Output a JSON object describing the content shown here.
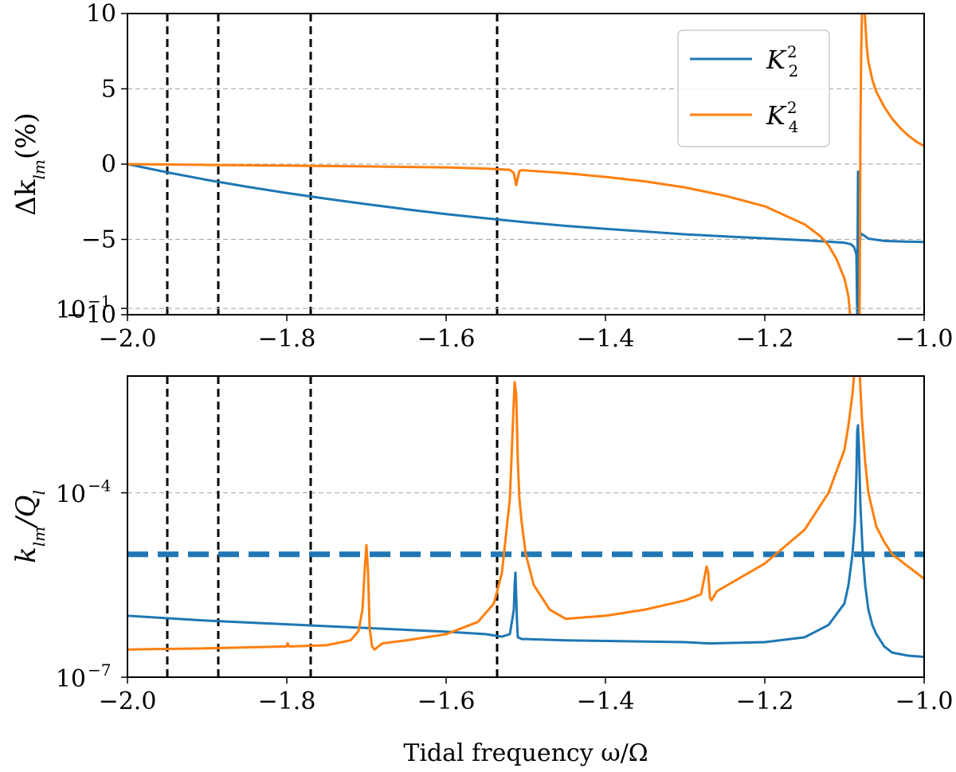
{
  "colors": {
    "series1": "#1f77b4",
    "series2": "#ff7f0e",
    "grid": "#b0b0b0",
    "vline": "#000000"
  },
  "chart_data": [
    {
      "type": "line",
      "panel": "top",
      "ylabel_main": "Δk",
      "ylabel_sub": "lm",
      "ylabel_unit": "(%)",
      "xlim": [
        -2.0,
        -1.0
      ],
      "ylim": [
        -10,
        10
      ],
      "xticks": [
        -2.0,
        -1.8,
        -1.6,
        -1.4,
        -1.2,
        -1.0
      ],
      "xtick_labels": [
        "−2.0",
        "−1.8",
        "−1.6",
        "−1.4",
        "−1.2",
        "−1.0"
      ],
      "yticks": [
        -10,
        -5,
        0,
        5,
        10
      ],
      "ytick_labels": [
        "−10",
        "−5",
        "0",
        "5",
        "10"
      ],
      "grid_y": [
        -5,
        0,
        5
      ],
      "vlines": [
        -1.95,
        -1.886,
        -1.77,
        -1.536
      ],
      "legend": {
        "position": "top-right",
        "entries": [
          {
            "base": "K",
            "sub": "2",
            "sup": "2",
            "series": "K22"
          },
          {
            "base": "K",
            "sub": "4",
            "sup": "2",
            "series": "K42"
          }
        ]
      },
      "series": [
        {
          "name": "K22",
          "x": [
            -2.0,
            -1.95,
            -1.9,
            -1.85,
            -1.8,
            -1.75,
            -1.7,
            -1.65,
            -1.6,
            -1.55,
            -1.5,
            -1.45,
            -1.4,
            -1.35,
            -1.3,
            -1.25,
            -1.2,
            -1.15,
            -1.12,
            -1.1,
            -1.092,
            -1.088,
            -1.085,
            -1.084,
            -1.083,
            -1.082,
            -1.081,
            -1.08,
            -1.075,
            -1.07,
            -1.05,
            -1.02,
            -1.0
          ],
          "y": [
            0.0,
            -0.55,
            -1.05,
            -1.5,
            -1.92,
            -2.3,
            -2.66,
            -3.0,
            -3.32,
            -3.6,
            -3.86,
            -4.1,
            -4.3,
            -4.48,
            -4.66,
            -4.8,
            -4.93,
            -5.06,
            -5.15,
            -5.22,
            -5.32,
            -5.5,
            -6.0,
            -10.0,
            -0.5,
            -10.0,
            -5.6,
            -4.6,
            -4.75,
            -4.95,
            -5.1,
            -5.15,
            -5.17
          ]
        },
        {
          "name": "K42",
          "x": [
            -2.0,
            -1.9,
            -1.8,
            -1.7,
            -1.6,
            -1.55,
            -1.52,
            -1.515,
            -1.512,
            -1.51,
            -1.508,
            -1.505,
            -1.5,
            -1.45,
            -1.4,
            -1.35,
            -1.3,
            -1.25,
            -1.2,
            -1.15,
            -1.13,
            -1.12,
            -1.11,
            -1.1,
            -1.095,
            -1.093
          ],
          "y": [
            0.0,
            -0.05,
            -0.1,
            -0.15,
            -0.22,
            -0.3,
            -0.38,
            -0.6,
            -1.4,
            -0.9,
            -0.45,
            -0.4,
            -0.42,
            -0.6,
            -0.85,
            -1.15,
            -1.55,
            -2.1,
            -2.8,
            -4.0,
            -4.8,
            -5.4,
            -6.3,
            -7.6,
            -8.8,
            -10.0
          ]
        },
        {
          "name": "K42-after-resonance",
          "x": [
            -1.081,
            -1.08,
            -1.079,
            -1.078,
            -1.077,
            -1.075,
            -1.074,
            -1.072,
            -1.07,
            -1.065,
            -1.06,
            -1.05,
            -1.04,
            -1.03,
            -1.02,
            -1.01,
            -1.0
          ],
          "y": [
            -10.0,
            2.0,
            7.5,
            10.0,
            11.0,
            11.0,
            9.5,
            7.8,
            6.8,
            5.6,
            4.8,
            3.8,
            3.0,
            2.4,
            1.9,
            1.5,
            1.2
          ]
        }
      ]
    },
    {
      "type": "line",
      "panel": "bottom",
      "yscale": "log",
      "ylabel_main": "k",
      "ylabel_sub": "lm",
      "ylabel_rest": "/Q",
      "ylabel_sub2": "l",
      "xlabel": "Tidal frequency ω/Ω",
      "xlim": [
        -2.0,
        -1.0
      ],
      "ylim_log10": [
        -7,
        -2.1
      ],
      "xticks": [
        -2.0,
        -1.8,
        -1.6,
        -1.4,
        -1.2,
        -1.0
      ],
      "xtick_labels": [
        "−2.0",
        "−1.8",
        "−1.6",
        "−1.4",
        "−1.2",
        "−1.0"
      ],
      "yticks_log10": [
        -7,
        -4,
        -1
      ],
      "ytick_base": "10",
      "ytick_exps": [
        "−7",
        "−4",
        "−1"
      ],
      "grid_y_log10": [
        -4,
        -1
      ],
      "vlines": [
        -1.95,
        -1.886,
        -1.77,
        -1.536
      ],
      "hline_log10": -5.0,
      "series": [
        {
          "name": "K22",
          "x": [
            -2.0,
            -1.9,
            -1.8,
            -1.7,
            -1.6,
            -1.55,
            -1.53,
            -1.52,
            -1.515,
            -1.514,
            -1.513,
            -1.512,
            -1.511,
            -1.51,
            -1.505,
            -1.5,
            -1.45,
            -1.4,
            -1.35,
            -1.3,
            -1.27,
            -1.2,
            -1.15,
            -1.12,
            -1.1,
            -1.095,
            -1.09,
            -1.087,
            -1.085,
            -1.084,
            -1.083,
            -1.082,
            -1.08,
            -1.077,
            -1.074,
            -1.07,
            -1.065,
            -1.06,
            -1.05,
            -1.04,
            -1.02,
            -1.0
          ],
          "y_log10": [
            -6.0,
            -6.08,
            -6.14,
            -6.2,
            -6.26,
            -6.3,
            -6.34,
            -6.3,
            -5.9,
            -5.5,
            -5.3,
            -5.7,
            -6.1,
            -6.35,
            -6.38,
            -6.38,
            -6.4,
            -6.41,
            -6.42,
            -6.43,
            -6.45,
            -6.43,
            -6.35,
            -6.15,
            -5.8,
            -5.5,
            -5.0,
            -4.5,
            -3.7,
            -3.0,
            -2.9,
            -3.2,
            -4.2,
            -5.0,
            -5.5,
            -5.9,
            -6.15,
            -6.3,
            -6.5,
            -6.6,
            -6.65,
            -6.67
          ]
        },
        {
          "name": "K42",
          "x": [
            -2.0,
            -1.9,
            -1.8,
            -1.799,
            -1.797,
            -1.795,
            -1.75,
            -1.72,
            -1.71,
            -1.705,
            -1.702,
            -1.7,
            -1.698,
            -1.696,
            -1.693,
            -1.69,
            -1.68,
            -1.65,
            -1.6,
            -1.56,
            -1.54,
            -1.53,
            -1.52,
            -1.516,
            -1.514,
            -1.512,
            -1.51,
            -1.508,
            -1.505,
            -1.5,
            -1.49,
            -1.47,
            -1.45,
            -1.4,
            -1.35,
            -1.3,
            -1.28,
            -1.273,
            -1.271,
            -1.269,
            -1.267,
            -1.26,
            -1.2,
            -1.15,
            -1.12,
            -1.1,
            -1.095,
            -1.09,
            -1.086,
            -1.084,
            -1.082,
            -1.08,
            -1.078,
            -1.074,
            -1.07,
            -1.06,
            -1.05,
            -1.04,
            -1.03,
            -1.02,
            -1.01,
            -1.0
          ],
          "y_log10": [
            -6.55,
            -6.53,
            -6.5,
            -6.45,
            -6.5,
            -6.5,
            -6.48,
            -6.4,
            -6.25,
            -5.9,
            -5.2,
            -4.85,
            -5.3,
            -6.2,
            -6.5,
            -6.55,
            -6.45,
            -6.4,
            -6.3,
            -6.1,
            -5.8,
            -5.3,
            -4.1,
            -2.8,
            -2.2,
            -2.4,
            -3.5,
            -4.1,
            -4.5,
            -5.0,
            -5.5,
            -5.9,
            -6.05,
            -6.0,
            -5.9,
            -5.75,
            -5.65,
            -5.2,
            -5.3,
            -5.7,
            -5.75,
            -5.6,
            -5.15,
            -4.6,
            -4.0,
            -3.3,
            -2.9,
            -2.4,
            -1.8,
            -1.4,
            -1.6,
            -2.3,
            -2.8,
            -3.5,
            -4.0,
            -4.55,
            -4.8,
            -5.0,
            -5.1,
            -5.2,
            -5.3,
            -5.4
          ]
        }
      ]
    }
  ]
}
